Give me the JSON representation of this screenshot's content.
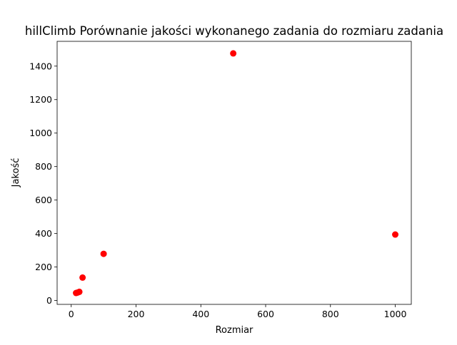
{
  "chart_data": {
    "type": "scatter",
    "title": "hillClimb Porównanie jakości wykonanego zadania do rozmiaru zadania",
    "xlabel": "Rozmiar",
    "ylabel": "Jakość",
    "xlim": [
      -43.5,
      1049.5
    ],
    "ylim": [
      -23,
      1548
    ],
    "xticks": [
      0,
      200,
      400,
      600,
      800,
      1000
    ],
    "yticks": [
      0,
      200,
      400,
      600,
      800,
      1000,
      1200,
      1400
    ],
    "grid": false,
    "marker_color": "#ff0000",
    "points": [
      {
        "x": 15,
        "y": 45
      },
      {
        "x": 20,
        "y": 48
      },
      {
        "x": 25,
        "y": 52
      },
      {
        "x": 35,
        "y": 137
      },
      {
        "x": 100,
        "y": 279
      },
      {
        "x": 500,
        "y": 1476
      },
      {
        "x": 1000,
        "y": 394
      }
    ]
  }
}
